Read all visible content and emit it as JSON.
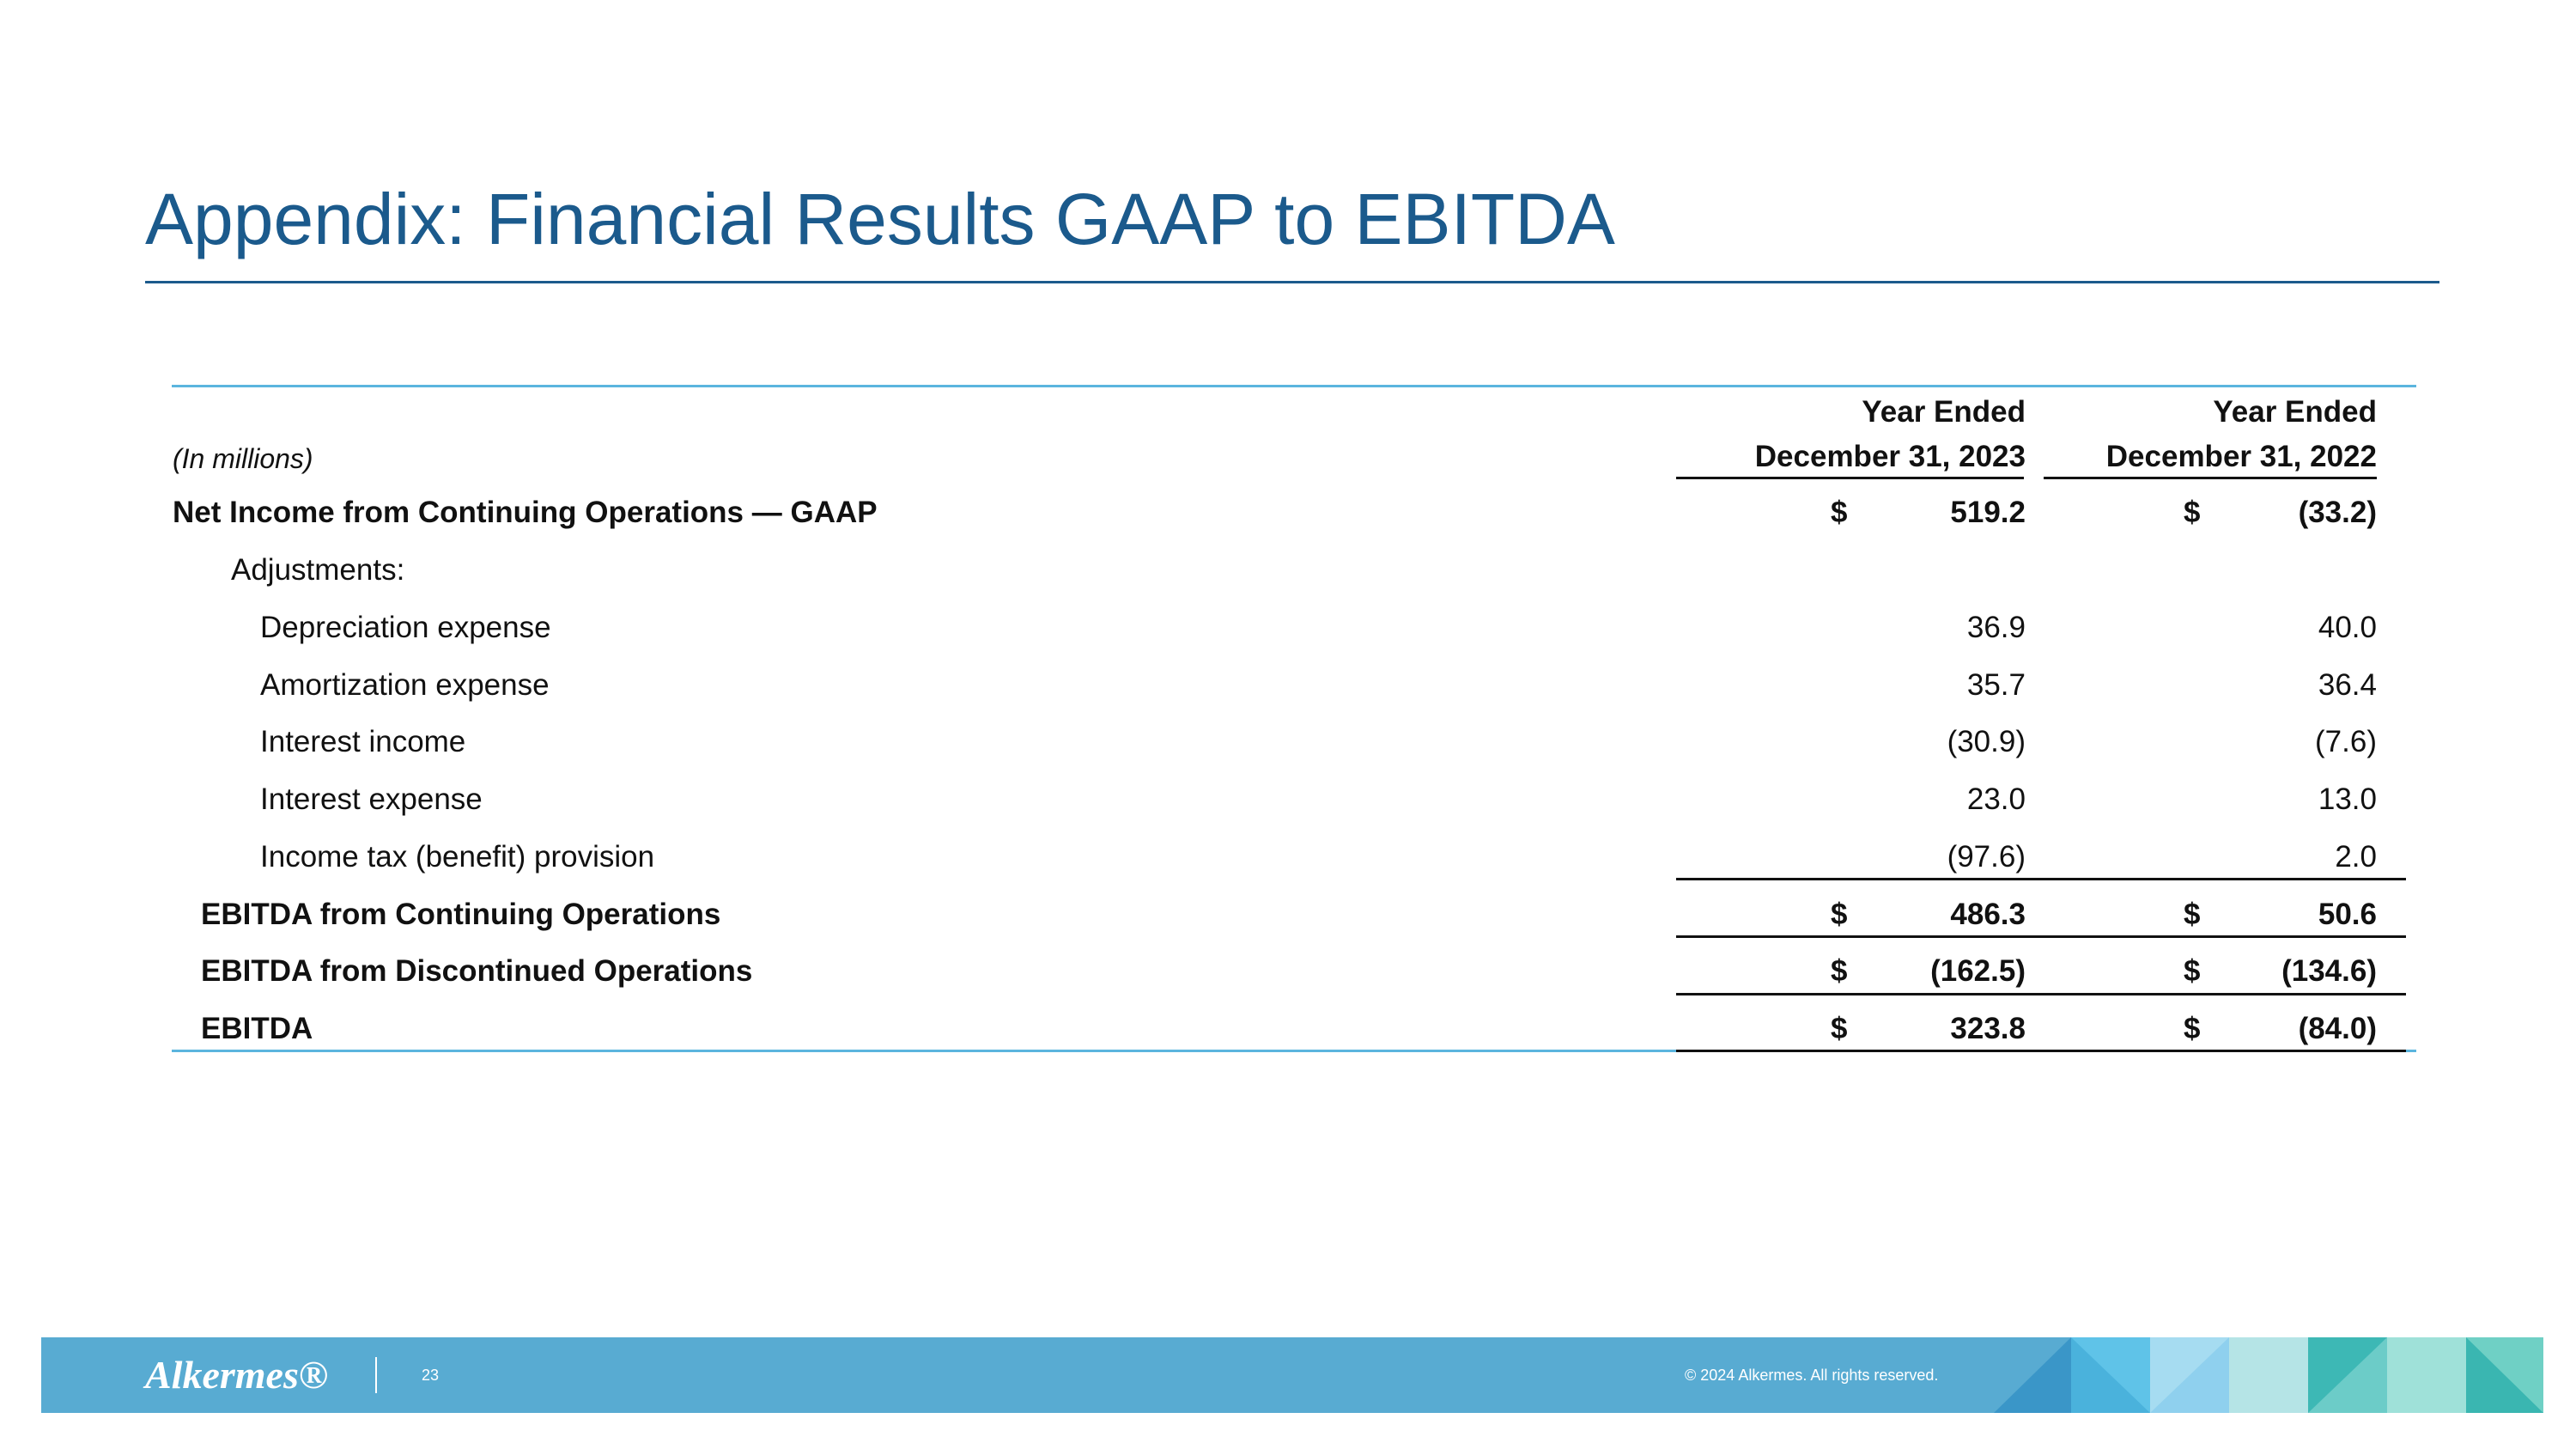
{
  "title": "Appendix: Financial Results GAAP to EBITDA",
  "table": {
    "unit_note": "(In millions)",
    "columns": [
      [
        "Year Ended",
        "December 31, 2023"
      ],
      [
        "Year Ended",
        "December 31, 2022"
      ]
    ],
    "rows": [
      {
        "label": "Net Income from Continuing Operations — GAAP",
        "currency": [
          "$",
          "$"
        ],
        "values": [
          "519.2",
          "(33.2)"
        ]
      },
      {
        "label": "Adjustments:"
      },
      {
        "label": "Depreciation expense",
        "values": [
          "36.9",
          "40.0"
        ]
      },
      {
        "label": "Amortization expense",
        "values": [
          "35.7",
          "36.4"
        ]
      },
      {
        "label": "Interest income",
        "values": [
          "(30.9)",
          "(7.6)"
        ]
      },
      {
        "label": "Interest expense",
        "values": [
          "23.0",
          "13.0"
        ]
      },
      {
        "label": "Income tax (benefit) provision",
        "values": [
          "(97.6)",
          "2.0"
        ]
      },
      {
        "label": "EBITDA from Continuing Operations",
        "currency": [
          "$",
          "$"
        ],
        "values": [
          "486.3",
          "50.6"
        ]
      },
      {
        "label": "EBITDA from Discontinued Operations",
        "currency": [
          "$",
          "$"
        ],
        "values": [
          "(162.5)",
          "(134.6)"
        ]
      },
      {
        "label": "EBITDA",
        "currency": [
          "$",
          "$"
        ],
        "values": [
          "323.8",
          "(84.0)"
        ]
      }
    ]
  },
  "footer": {
    "logo": "Alkermes®",
    "page_number": "23",
    "copyright": "© 2024 Alkermes. All rights reserved."
  }
}
